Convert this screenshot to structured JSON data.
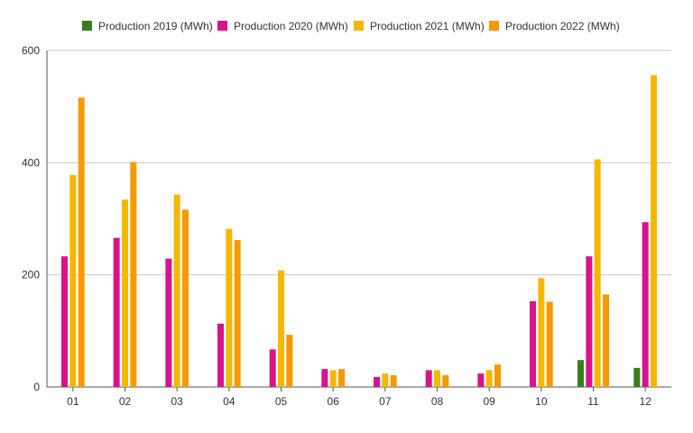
{
  "chart_data": {
    "type": "bar",
    "title": "",
    "xlabel": "",
    "ylabel": "",
    "legend_position": "top",
    "grid": true,
    "ylim": [
      0,
      600
    ],
    "yticks": [
      "0",
      "200",
      "400",
      "600"
    ],
    "categories": [
      "01",
      "02",
      "03",
      "04",
      "05",
      "06",
      "07",
      "08",
      "09",
      "10",
      "11",
      "12"
    ],
    "series": [
      {
        "name": "Production 2019 (MWh)",
        "color": "#3a7d1e",
        "values": [
          null,
          null,
          null,
          null,
          null,
          null,
          null,
          null,
          null,
          null,
          48,
          34
        ]
      },
      {
        "name": "Production 2020 (MWh)",
        "color": "#d9138a",
        "values": [
          233,
          266,
          229,
          113,
          67,
          32,
          18,
          30,
          24,
          153,
          233,
          294
        ]
      },
      {
        "name": "Production 2021 (MWh)",
        "color": "#f5b800",
        "values": [
          378,
          334,
          343,
          282,
          208,
          30,
          24,
          30,
          30,
          194,
          406,
          556
        ]
      },
      {
        "name": "Production 2022 (MWh)",
        "color": "#f59a00",
        "values": [
          516,
          401,
          316,
          262,
          93,
          32,
          21,
          21,
          40,
          152,
          165,
          null
        ]
      }
    ]
  }
}
